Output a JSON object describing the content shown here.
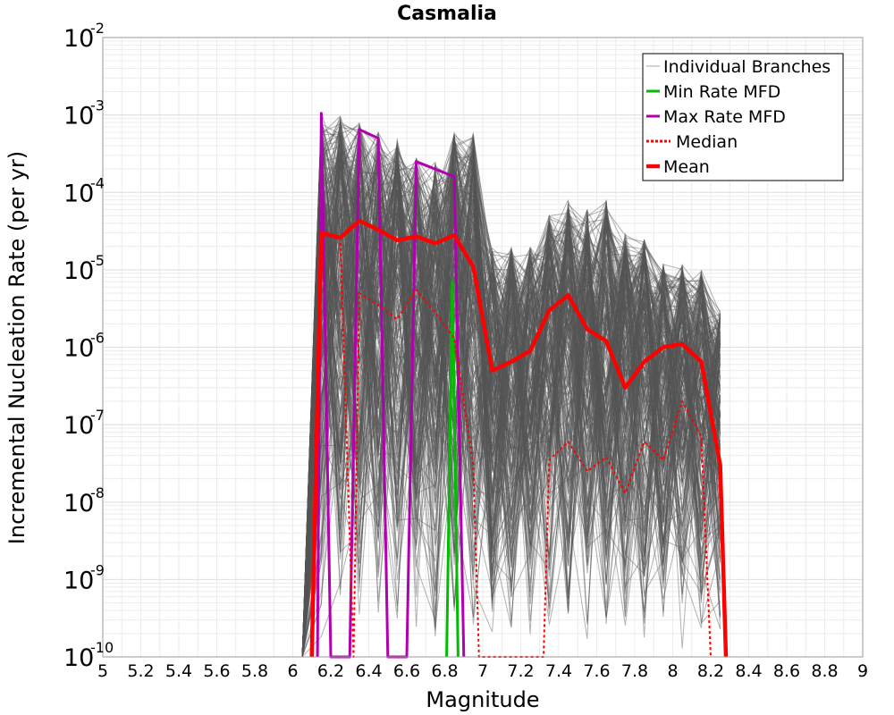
{
  "chart_data": {
    "type": "line",
    "title": "Casmalia",
    "xlabel": "Magnitude",
    "ylabel": "Incremental Nucleation Rate (per yr)",
    "xlim": [
      5,
      9
    ],
    "ylim": [
      1e-10,
      0.01
    ],
    "yscale": "log",
    "grid": true,
    "legend_position": "top-right",
    "x_ticks": [
      "5",
      "5.2",
      "5.4",
      "5.6",
      "5.8",
      "6",
      "6.2",
      "6.4",
      "6.6",
      "6.8",
      "7",
      "7.2",
      "7.4",
      "7.6",
      "7.8",
      "8",
      "8.2",
      "8.4",
      "8.6",
      "8.8",
      "9"
    ],
    "y_ticks": [
      {
        "base": "10",
        "exp": "-2"
      },
      {
        "base": "10",
        "exp": "-3"
      },
      {
        "base": "10",
        "exp": "-4"
      },
      {
        "base": "10",
        "exp": "-5"
      },
      {
        "base": "10",
        "exp": "-6"
      },
      {
        "base": "10",
        "exp": "-7"
      },
      {
        "base": "10",
        "exp": "-8"
      },
      {
        "base": "10",
        "exp": "-9"
      },
      {
        "base": "10",
        "exp": "-10"
      }
    ],
    "series": [
      {
        "name": "Individual Branches",
        "color": "#555555",
        "style": "thin",
        "note": "bundle of many logic-tree branch MFDs",
        "band": {
          "x": [
            6.05,
            6.15,
            6.25,
            6.35,
            6.45,
            6.55,
            6.65,
            6.75,
            6.85,
            6.95,
            7.05,
            7.15,
            7.25,
            7.35,
            7.45,
            7.55,
            7.65,
            7.75,
            7.85,
            7.95,
            8.05,
            8.15,
            8.25
          ],
          "upper": [
            1e-10,
            0.0011,
            0.001,
            0.0008,
            0.0006,
            0.0005,
            0.0003,
            0.00025,
            0.0006,
            0.0006,
            2e-05,
            2e-05,
            2e-05,
            5e-05,
            8e-05,
            6e-05,
            8e-05,
            3e-05,
            2.5e-05,
            1.2e-05,
            1.2e-05,
            1e-05,
            3e-06
          ],
          "lower": [
            1e-10,
            1e-10,
            1e-10,
            1e-10,
            1e-10,
            1e-10,
            1e-10,
            1e-10,
            1e-10,
            1e-10,
            1e-10,
            1e-10,
            1e-10,
            1e-10,
            1e-10,
            1e-10,
            1e-10,
            1e-10,
            1e-10,
            1e-10,
            1e-10,
            1e-10,
            1e-10
          ]
        }
      },
      {
        "name": "Min Rate MFD",
        "color": "#00bb00",
        "width": 3,
        "dash": "",
        "points": [
          [
            6.81,
            1e-10
          ],
          [
            6.84,
            7e-06
          ],
          [
            6.87,
            1e-10
          ]
        ]
      },
      {
        "name": "Max Rate MFD",
        "color": "#b000b0",
        "width": 3,
        "dash": "",
        "points": [
          [
            6.13,
            1e-10
          ],
          [
            6.15,
            0.00105
          ],
          [
            6.2,
            1e-10
          ],
          [
            6.3,
            1e-10
          ],
          [
            6.35,
            0.00065
          ],
          [
            6.45,
            0.0005
          ],
          [
            6.5,
            1e-10
          ],
          [
            6.6,
            1e-10
          ],
          [
            6.65,
            0.00025
          ],
          [
            6.85,
            0.00016
          ],
          [
            6.9,
            1e-10
          ]
        ]
      },
      {
        "name": "Median",
        "color": "#ff0000",
        "width": 2,
        "dash": "3,3",
        "points": [
          [
            6.1,
            1e-10
          ],
          [
            6.15,
            2.8e-05
          ],
          [
            6.25,
            2.5e-05
          ],
          [
            6.32,
            1e-10
          ],
          [
            6.35,
            5e-06
          ],
          [
            6.45,
            3.5e-06
          ],
          [
            6.55,
            2.3e-06
          ],
          [
            6.65,
            5.5e-06
          ],
          [
            6.75,
            2.8e-06
          ],
          [
            6.85,
            1.3e-06
          ],
          [
            6.95,
            3e-08
          ],
          [
            6.98,
            1e-10
          ],
          [
            7.32,
            1e-10
          ],
          [
            7.35,
            3.5e-08
          ],
          [
            7.45,
            6e-08
          ],
          [
            7.55,
            2.5e-08
          ],
          [
            7.65,
            3.8e-08
          ],
          [
            7.75,
            1.3e-08
          ],
          [
            7.85,
            6e-08
          ],
          [
            7.95,
            3.5e-08
          ],
          [
            8.05,
            2e-07
          ],
          [
            8.15,
            7e-08
          ],
          [
            8.2,
            1e-10
          ]
        ]
      },
      {
        "name": "Mean",
        "color": "#ff0000",
        "width": 4.5,
        "dash": "",
        "points": [
          [
            6.1,
            1e-10
          ],
          [
            6.15,
            3e-05
          ],
          [
            6.25,
            2.6e-05
          ],
          [
            6.35,
            4.3e-05
          ],
          [
            6.45,
            3.3e-05
          ],
          [
            6.55,
            2.4e-05
          ],
          [
            6.65,
            2.7e-05
          ],
          [
            6.75,
            2.2e-05
          ],
          [
            6.85,
            2.8e-05
          ],
          [
            6.95,
            1.1e-05
          ],
          [
            7.05,
            5e-07
          ],
          [
            7.15,
            6.5e-07
          ],
          [
            7.25,
            9e-07
          ],
          [
            7.35,
            3e-06
          ],
          [
            7.45,
            4.7e-06
          ],
          [
            7.55,
            1.7e-06
          ],
          [
            7.65,
            1.2e-06
          ],
          [
            7.75,
            3e-07
          ],
          [
            7.85,
            6.5e-07
          ],
          [
            7.95,
            1e-06
          ],
          [
            8.05,
            1.1e-06
          ],
          [
            8.15,
            6.5e-07
          ],
          [
            8.25,
            3e-08
          ],
          [
            8.28,
            1e-10
          ]
        ]
      }
    ]
  }
}
